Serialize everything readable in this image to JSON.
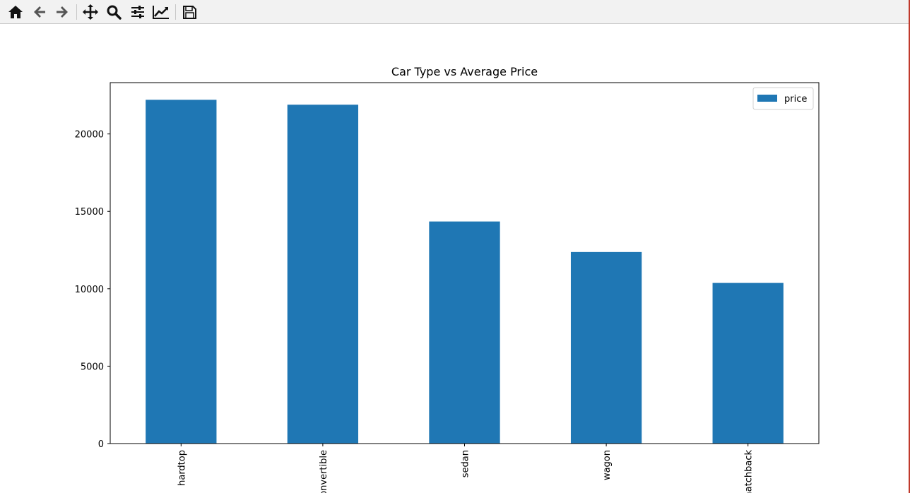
{
  "toolbar": {
    "buttons": [
      {
        "name": "home",
        "icon": "home-icon"
      },
      {
        "name": "back",
        "icon": "arrow-left-icon"
      },
      {
        "name": "forward",
        "icon": "arrow-right-icon"
      },
      {
        "name": "pan",
        "icon": "move-icon"
      },
      {
        "name": "zoom",
        "icon": "search-icon"
      },
      {
        "name": "configure-subplots",
        "icon": "sliders-icon"
      },
      {
        "name": "edit-axis",
        "icon": "line-chart-icon"
      },
      {
        "name": "save",
        "icon": "save-icon"
      }
    ]
  },
  "chart_data": {
    "type": "bar",
    "title": "Car Type vs Average Price",
    "categories": [
      "hardtop",
      "convertible",
      "sedan",
      "wagon",
      "hatchback"
    ],
    "series": [
      {
        "name": "price",
        "values": [
          22208,
          21890,
          14345,
          12372,
          10376
        ],
        "color": "#1f77b4"
      }
    ],
    "ylim": [
      0,
      23315
    ],
    "yticks": [
      0,
      5000,
      10000,
      15000,
      20000
    ],
    "xlabel": "",
    "ylabel": "",
    "grid": false,
    "legend": "top-right",
    "xtick_rotation": 90
  }
}
